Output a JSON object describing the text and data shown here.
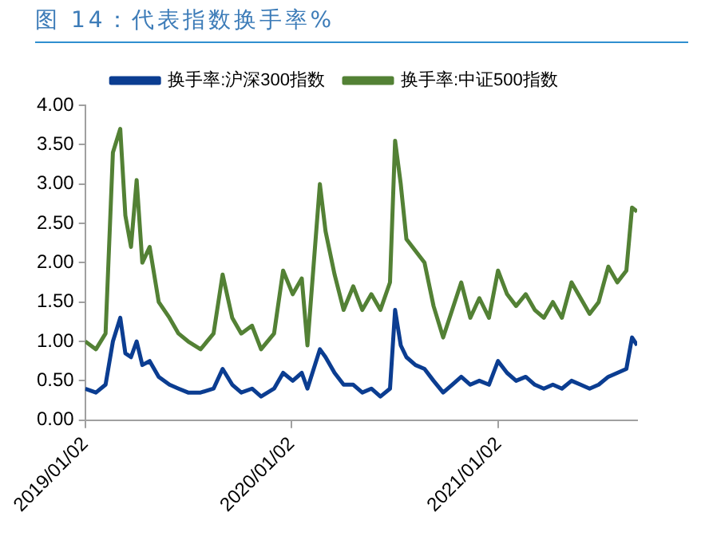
{
  "chart_data": {
    "type": "line",
    "title": "图 14：代表指数换手率%",
    "x": [
      "2019-01-02",
      "2019-01-21",
      "2019-02-07",
      "2019-02-20",
      "2019-03-05",
      "2019-03-14",
      "2019-03-24",
      "2019-04-03",
      "2019-04-13",
      "2019-04-26",
      "2019-05-12",
      "2019-05-31",
      "2019-06-16",
      "2019-07-03",
      "2019-07-25",
      "2019-08-17",
      "2019-09-02",
      "2019-09-19",
      "2019-10-05",
      "2019-10-24",
      "2019-11-09",
      "2019-12-02",
      "2019-12-18",
      "2020-01-04",
      "2020-01-20",
      "2020-01-30",
      "2020-02-21",
      "2020-03-02",
      "2020-03-18",
      "2020-04-03",
      "2020-04-20",
      "2020-05-06",
      "2020-05-22",
      "2020-06-07",
      "2020-06-24",
      "2020-07-03",
      "2020-07-13",
      "2020-07-23",
      "2020-08-08",
      "2020-08-24",
      "2020-09-09",
      "2020-09-26",
      "2020-10-12",
      "2020-10-28",
      "2020-11-13",
      "2020-11-29",
      "2020-12-16",
      "2021-01-01",
      "2021-01-17",
      "2021-02-02",
      "2021-02-19",
      "2021-03-07",
      "2021-03-23",
      "2021-04-08",
      "2021-04-24",
      "2021-05-11",
      "2021-05-27",
      "2021-06-12",
      "2021-06-28",
      "2021-07-15",
      "2021-07-31",
      "2021-08-16",
      "2021-08-26",
      "2021-09-04"
    ],
    "series": [
      {
        "name": "换手率:沪深300指数",
        "color": "#0b3d91",
        "values": [
          0.4,
          0.35,
          0.45,
          1.0,
          1.3,
          0.85,
          0.8,
          1.0,
          0.7,
          0.75,
          0.55,
          0.45,
          0.4,
          0.35,
          0.35,
          0.4,
          0.65,
          0.45,
          0.35,
          0.4,
          0.3,
          0.4,
          0.6,
          0.5,
          0.6,
          0.4,
          0.9,
          0.8,
          0.6,
          0.45,
          0.45,
          0.35,
          0.4,
          0.3,
          0.4,
          1.4,
          0.95,
          0.8,
          0.7,
          0.65,
          0.5,
          0.35,
          0.45,
          0.55,
          0.45,
          0.5,
          0.45,
          0.75,
          0.6,
          0.5,
          0.55,
          0.45,
          0.4,
          0.45,
          0.4,
          0.5,
          0.45,
          0.4,
          0.45,
          0.55,
          0.6,
          0.65,
          1.05,
          0.95
        ]
      },
      {
        "name": "换手率:中证500指数",
        "color": "#538135",
        "values": [
          1.0,
          0.9,
          1.1,
          3.4,
          3.7,
          2.6,
          2.2,
          3.05,
          2.0,
          2.2,
          1.5,
          1.3,
          1.1,
          1.0,
          0.9,
          1.1,
          1.85,
          1.3,
          1.1,
          1.2,
          0.9,
          1.1,
          1.9,
          1.6,
          1.8,
          0.95,
          3.0,
          2.4,
          1.85,
          1.4,
          1.7,
          1.4,
          1.6,
          1.4,
          1.75,
          3.55,
          3.0,
          2.3,
          2.15,
          2.0,
          1.45,
          1.05,
          1.4,
          1.75,
          1.3,
          1.55,
          1.3,
          1.9,
          1.6,
          1.45,
          1.6,
          1.4,
          1.3,
          1.5,
          1.3,
          1.75,
          1.55,
          1.35,
          1.5,
          1.95,
          1.75,
          1.9,
          2.7,
          2.65
        ]
      }
    ],
    "xlim": [
      "2019-01-02",
      "2021-09-04"
    ],
    "xticks": [
      {
        "value": "2019-01-02",
        "label": "2019/01/02"
      },
      {
        "value": "2020-01-02",
        "label": "2020/01/02"
      },
      {
        "value": "2021-01-02",
        "label": "2021/01/02"
      }
    ],
    "ylim": [
      0,
      4
    ],
    "yticks": [
      {
        "value": 0,
        "label": "0.00"
      },
      {
        "value": 0.5,
        "label": "0.50"
      },
      {
        "value": 1,
        "label": "1.00"
      },
      {
        "value": 1.5,
        "label": "1.50"
      },
      {
        "value": 2,
        "label": "2.00"
      },
      {
        "value": 2.5,
        "label": "2.50"
      },
      {
        "value": 3,
        "label": "3.00"
      },
      {
        "value": 3.5,
        "label": "3.50"
      },
      {
        "value": 4,
        "label": "4.00"
      }
    ],
    "grid": false,
    "legend": "top",
    "marker": "none",
    "line_style": "solid"
  }
}
